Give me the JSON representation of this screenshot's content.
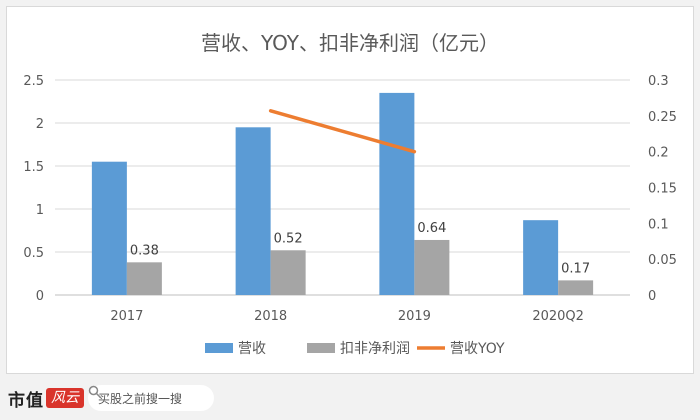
{
  "chart_data": {
    "type": "bar",
    "title": "营收、YOY、扣非净利润（亿元）",
    "categories": [
      "2017",
      "2018",
      "2019",
      "2020Q2"
    ],
    "series": [
      {
        "name": "营收",
        "type": "bar",
        "axis": "left",
        "values": [
          1.55,
          1.95,
          2.35,
          0.87
        ],
        "color": "#5b9bd5"
      },
      {
        "name": "扣非净利润",
        "type": "bar",
        "axis": "left",
        "values": [
          0.38,
          0.52,
          0.64,
          0.17
        ],
        "labels": [
          "0.38",
          "0.52",
          "0.64",
          "0.17"
        ],
        "color": "#a5a5a5"
      },
      {
        "name": "营收YOY",
        "type": "line",
        "axis": "right",
        "values": [
          null,
          0.257,
          0.2,
          null
        ],
        "color": "#ed7d31"
      }
    ],
    "y_left": {
      "range": [
        0,
        2.5
      ],
      "ticks": [
        "0",
        "0.5",
        "1",
        "1.5",
        "2",
        "2.5"
      ]
    },
    "y_right": {
      "range": [
        0,
        0.3
      ],
      "ticks": [
        "0",
        "0.05",
        "0.1",
        "0.15",
        "0.2",
        "0.25",
        "0.3"
      ]
    },
    "grid": true,
    "legend_position": "bottom"
  },
  "footer": {
    "brand": "市值",
    "brand_mark": "风云",
    "search_placeholder": "买股之前搜一搜"
  }
}
